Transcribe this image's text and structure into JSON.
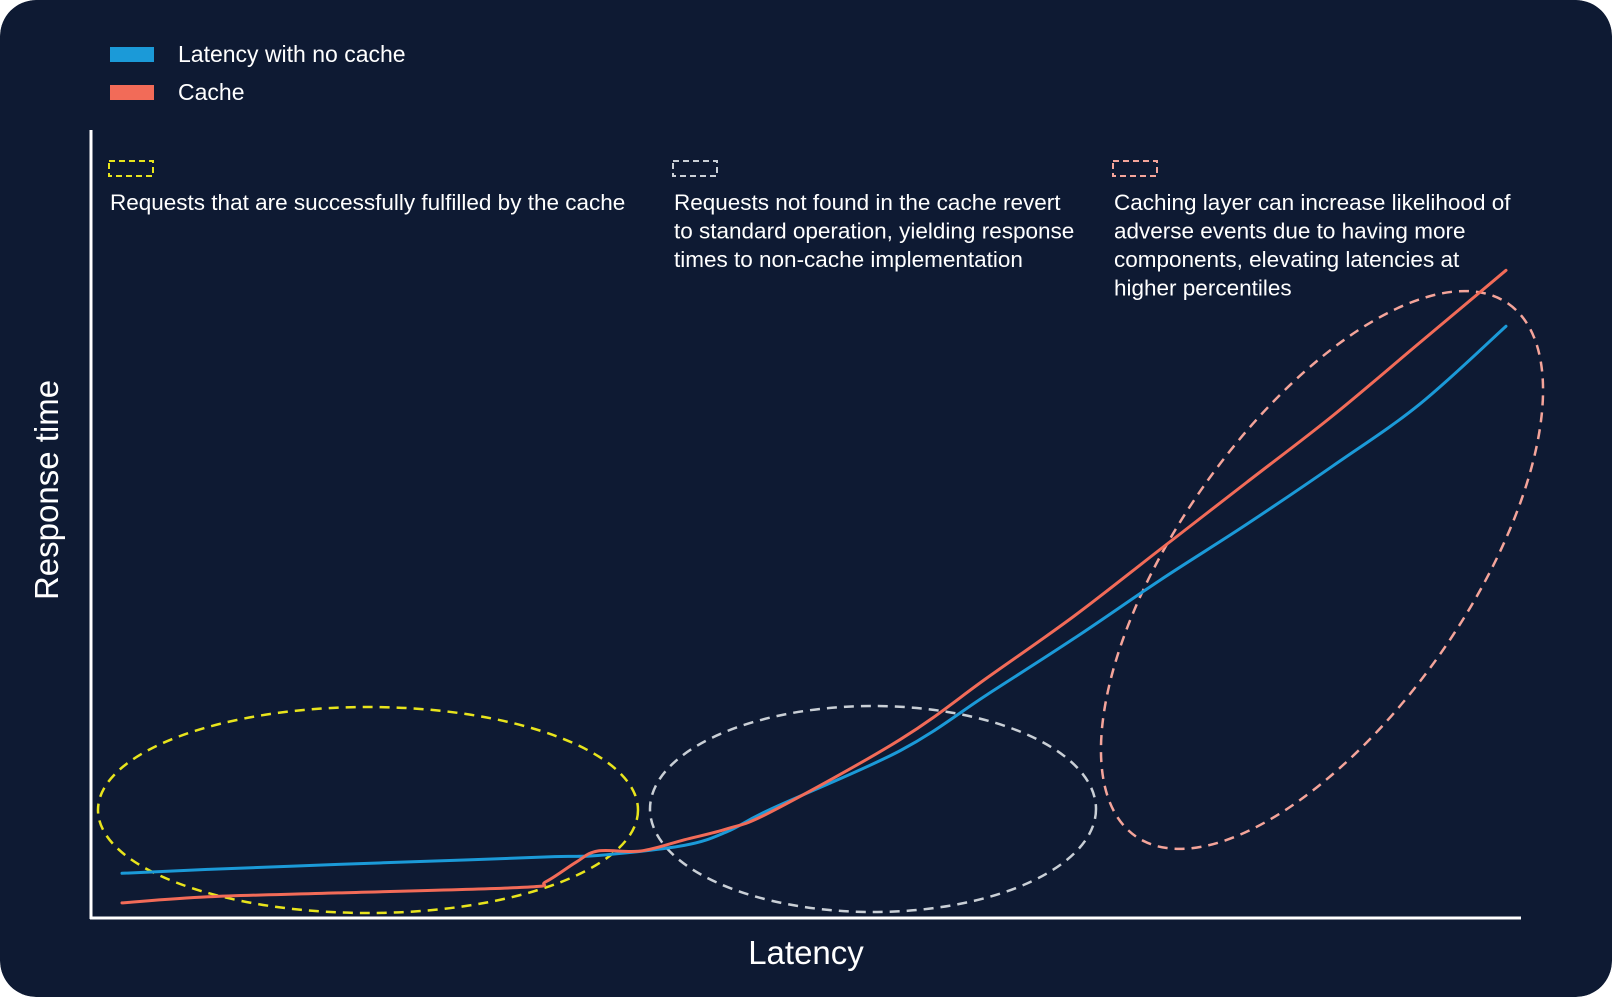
{
  "chart_data": {
    "type": "line",
    "title": "",
    "xlabel": "Latency",
    "ylabel": "Response time",
    "grid": false,
    "legend_position": "top-left",
    "background_color": "#0e1a33",
    "axis_color": "#ffffff",
    "series": [
      {
        "name": "Latency with no cache",
        "color": "#1b9ad8",
        "x": [
          0,
          2,
          5,
          8,
          10,
          11,
          13,
          14,
          15,
          18,
          20,
          22,
          24,
          26,
          28,
          30,
          32
        ],
        "values": [
          0.8,
          0.87,
          0.96,
          1.04,
          1.1,
          1.12,
          1.3,
          1.55,
          1.95,
          3.0,
          4.0,
          5.0,
          6.05,
          7.05,
          8.1,
          9.2,
          10.6
        ]
      },
      {
        "name": "Cache",
        "color": "#f26b58",
        "x": [
          0,
          2,
          5,
          9.3,
          9.8,
          10.5,
          11,
          12,
          13,
          14,
          15,
          18,
          20,
          22,
          24,
          26,
          28,
          30,
          32
        ],
        "values": [
          0.27,
          0.38,
          0.45,
          0.55,
          0.65,
          1.0,
          1.2,
          1.2,
          1.4,
          1.6,
          1.9,
          3.2,
          4.3,
          5.4,
          6.6,
          7.8,
          9.0,
          10.3,
          11.6
        ]
      }
    ],
    "xlim": [
      0,
      32
    ],
    "ylim": [
      0,
      12
    ],
    "annotations": [
      {
        "text": "Requests that are successfully fulfilled by the cache",
        "color": "#e8e41c",
        "region_x": [
          0,
          11
        ]
      },
      {
        "text": "Requests not found in the cache revert to standard operation, yielding response times to non-cache implementation",
        "color": "#c9cfd6",
        "region_x": [
          11,
          21
        ]
      },
      {
        "text": "Caching layer can increase likelihood of adverse events due to having more components, elevating latencies at higher percentiles",
        "color": "#f4a49a",
        "region_x": [
          21,
          32
        ]
      }
    ]
  }
}
